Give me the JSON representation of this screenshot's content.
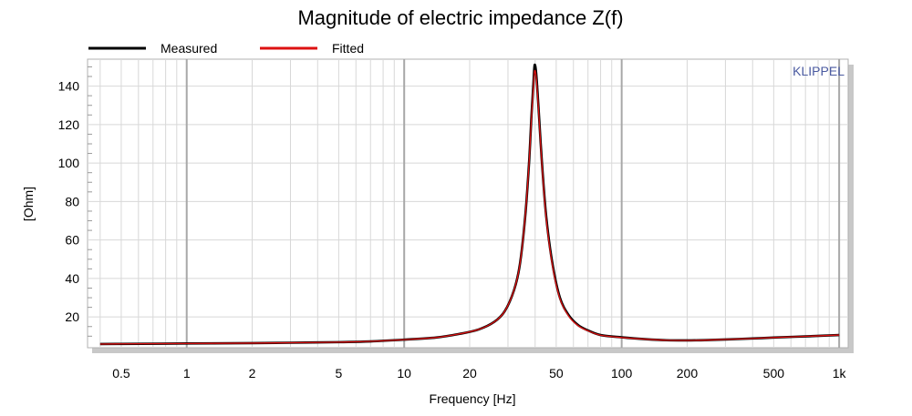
{
  "chart_data": {
    "type": "line",
    "title": "Magnitude of electric impedance Z(f)",
    "xlabel": "Frequency [Hz]",
    "ylabel": "[Ohm]",
    "watermark": "KLIPPEL",
    "x_scale": "log",
    "xlim": [
      0.35,
      1100
    ],
    "ylim": [
      4,
      154
    ],
    "grid": true,
    "legend_position": "top-left",
    "x_ticks": [
      {
        "value": 0.5,
        "label": "0.5"
      },
      {
        "value": 1,
        "label": "1"
      },
      {
        "value": 2,
        "label": "2"
      },
      {
        "value": 5,
        "label": "5"
      },
      {
        "value": 10,
        "label": "10"
      },
      {
        "value": 20,
        "label": "20"
      },
      {
        "value": 50,
        "label": "50"
      },
      {
        "value": 100,
        "label": "100"
      },
      {
        "value": 200,
        "label": "200"
      },
      {
        "value": 500,
        "label": "500"
      },
      {
        "value": 1000,
        "label": "1k"
      }
    ],
    "y_ticks": [
      {
        "value": 20,
        "label": "20"
      },
      {
        "value": 40,
        "label": "40"
      },
      {
        "value": 60,
        "label": "60"
      },
      {
        "value": 80,
        "label": "80"
      },
      {
        "value": 100,
        "label": "100"
      },
      {
        "value": 120,
        "label": "120"
      },
      {
        "value": 140,
        "label": "140"
      }
    ],
    "series": [
      {
        "name": "Measured",
        "color": "#000000",
        "points": [
          [
            0.4,
            5.9
          ],
          [
            0.5,
            6.0
          ],
          [
            1,
            6.2
          ],
          [
            2,
            6.4
          ],
          [
            3,
            6.6
          ],
          [
            5,
            6.9
          ],
          [
            7,
            7.3
          ],
          [
            10,
            8.2
          ],
          [
            14,
            9.3
          ],
          [
            18,
            11.2
          ],
          [
            22,
            13.5
          ],
          [
            26,
            17.5
          ],
          [
            29,
            23
          ],
          [
            32,
            34
          ],
          [
            34,
            47
          ],
          [
            36,
            72
          ],
          [
            37.5,
            100
          ],
          [
            38.5,
            125
          ],
          [
            39.3,
            142
          ],
          [
            39.8,
            151
          ],
          [
            40.5,
            146
          ],
          [
            41.5,
            128
          ],
          [
            43,
            100
          ],
          [
            45,
            72
          ],
          [
            48,
            48
          ],
          [
            52,
            30
          ],
          [
            57,
            21
          ],
          [
            63,
            15.8
          ],
          [
            70,
            13
          ],
          [
            80,
            10.6
          ],
          [
            100,
            9.4
          ],
          [
            130,
            8.4
          ],
          [
            160,
            7.9
          ],
          [
            200,
            7.8
          ],
          [
            250,
            8.0
          ],
          [
            300,
            8.3
          ],
          [
            400,
            8.8
          ],
          [
            500,
            9.3
          ],
          [
            700,
            9.9
          ],
          [
            1000,
            10.6
          ]
        ]
      },
      {
        "name": "Fitted",
        "color": "#dd1111",
        "points": [
          [
            0.4,
            5.9
          ],
          [
            0.5,
            6.0
          ],
          [
            1,
            6.2
          ],
          [
            2,
            6.4
          ],
          [
            3,
            6.6
          ],
          [
            5,
            6.9
          ],
          [
            7,
            7.3
          ],
          [
            10,
            8.2
          ],
          [
            14,
            9.3
          ],
          [
            18,
            11.2
          ],
          [
            22,
            13.5
          ],
          [
            26,
            17.5
          ],
          [
            29,
            23
          ],
          [
            32,
            34
          ],
          [
            34,
            47
          ],
          [
            36,
            72
          ],
          [
            37.5,
            100
          ],
          [
            38.5,
            124
          ],
          [
            39.3,
            140
          ],
          [
            39.8,
            148
          ],
          [
            40.5,
            144
          ],
          [
            41.5,
            127
          ],
          [
            43,
            99
          ],
          [
            45,
            71
          ],
          [
            48,
            47
          ],
          [
            52,
            29.5
          ],
          [
            57,
            20.5
          ],
          [
            63,
            15.5
          ],
          [
            70,
            12.8
          ],
          [
            80,
            10.5
          ],
          [
            100,
            9.3
          ],
          [
            130,
            8.4
          ],
          [
            160,
            7.9
          ],
          [
            200,
            7.8
          ],
          [
            250,
            8.0
          ],
          [
            300,
            8.3
          ],
          [
            400,
            8.8
          ],
          [
            500,
            9.3
          ],
          [
            700,
            9.9
          ],
          [
            1000,
            10.6
          ]
        ]
      }
    ]
  }
}
